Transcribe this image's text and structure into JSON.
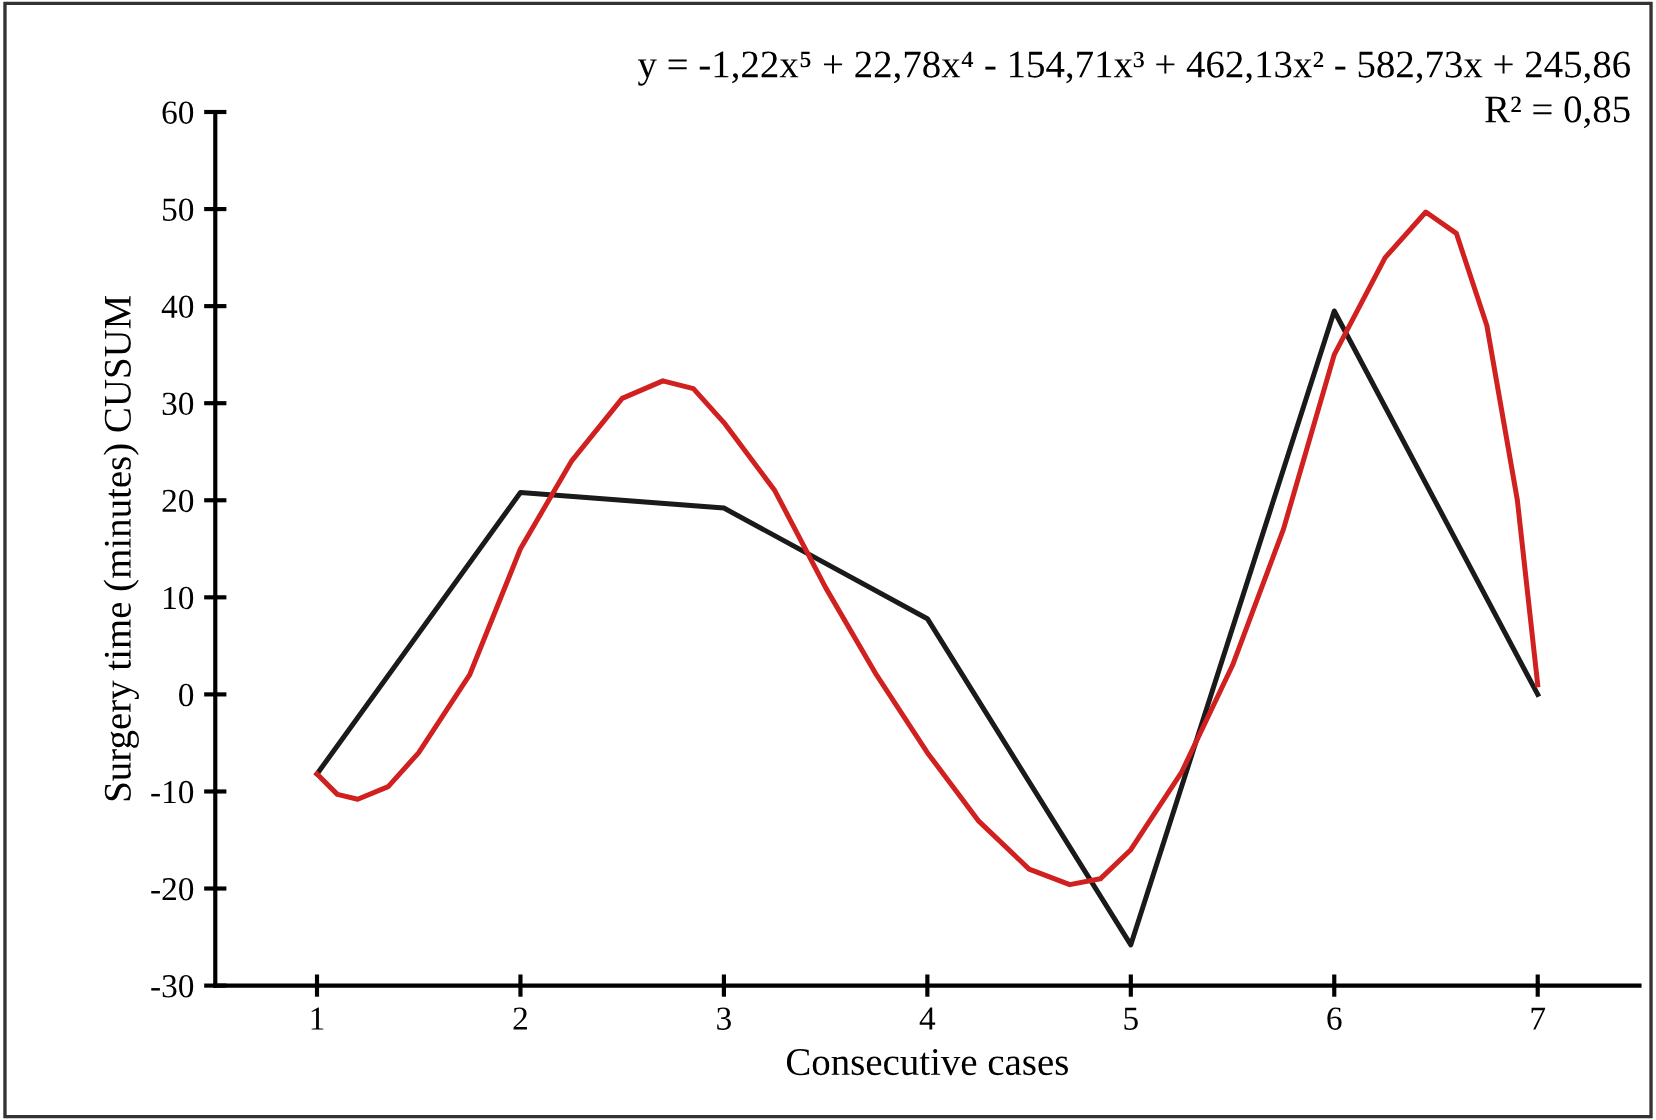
{
  "chart_data": {
    "type": "line",
    "xlabel": "Consecutive cases",
    "ylabel": "Surgery time (minutes) CUSUM",
    "xlim": [
      0.5,
      7.5
    ],
    "xticks": [
      1,
      2,
      3,
      4,
      5,
      6,
      7
    ],
    "ylim": [
      -30,
      60
    ],
    "yticks": [
      -30,
      -20,
      -10,
      0,
      10,
      20,
      30,
      40,
      50,
      60
    ],
    "grid": false,
    "marker": "none",
    "line_style": "solid",
    "annotations": [
      "y = -1,22x⁵ + 22,78x⁴ - 154,71x³ + 462,13x² - 582,73x + 245,86",
      "R² = 0,85"
    ],
    "series": [
      {
        "color": "#1a1a1a",
        "x": [
          1,
          2,
          3,
          4,
          5,
          6,
          7
        ],
        "values": [
          -8.2,
          20.8,
          19.2,
          7.8,
          -25.8,
          39.5,
          0
        ]
      },
      {
        "color": "#d02020",
        "x": [
          1,
          1.1,
          1.2,
          1.35,
          1.5,
          1.75,
          2,
          2.25,
          2.5,
          2.7,
          2.85,
          3,
          3.25,
          3.5,
          3.75,
          4,
          4.25,
          4.5,
          4.7,
          4.85,
          5,
          5.25,
          5.5,
          5.75,
          6,
          6.25,
          6.45,
          6.6,
          6.75,
          6.9,
          7
        ],
        "values": [
          -8.2,
          -10.3,
          -10.8,
          -9.5,
          -6,
          2,
          15,
          24,
          30.5,
          32.3,
          31.5,
          28,
          21,
          11,
          2,
          -6,
          -13,
          -18,
          -19.6,
          -19,
          -16,
          -8,
          3,
          17,
          35,
          45,
          49.7,
          47.5,
          38,
          20,
          1
        ]
      }
    ]
  }
}
